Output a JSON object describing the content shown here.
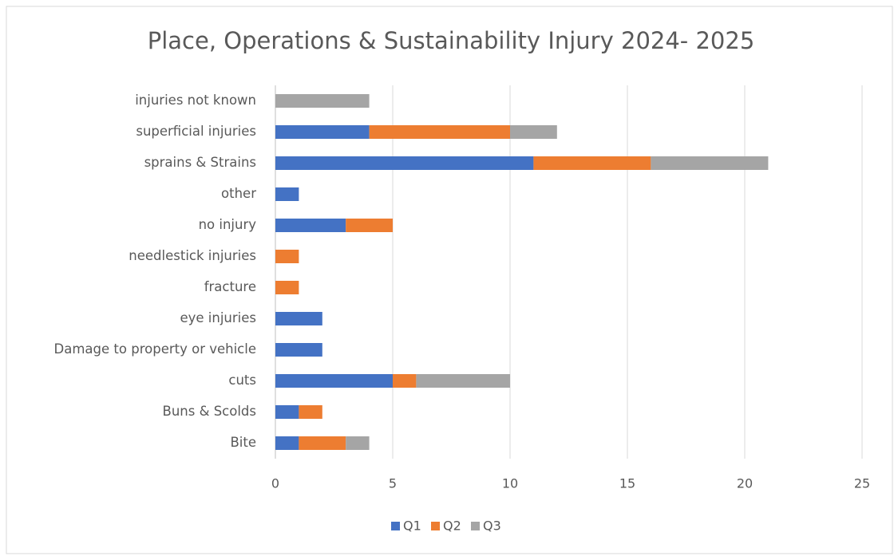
{
  "chart_data": {
    "type": "bar",
    "orientation": "horizontal",
    "stacked": true,
    "title": "Place, Operations & Sustainability Injury 2024- 2025",
    "categories": [
      "injuries not known",
      "superficial injuries",
      "sprains & Strains",
      "other",
      "no injury",
      "needlestick injuries",
      "fracture",
      "eye injuries",
      "Damage to property or vehicle",
      "cuts",
      "Buns & Scolds",
      "Bite"
    ],
    "series": [
      {
        "name": "Q1",
        "color": "#4472c4",
        "values": [
          0,
          4,
          11,
          1,
          3,
          0,
          0,
          2,
          2,
          5,
          1,
          1
        ]
      },
      {
        "name": "Q2",
        "color": "#ed7d31",
        "values": [
          0,
          6,
          5,
          0,
          2,
          1,
          1,
          0,
          0,
          1,
          1,
          2
        ]
      },
      {
        "name": "Q3",
        "color": "#a5a5a5",
        "values": [
          4,
          2,
          5,
          0,
          0,
          0,
          0,
          0,
          0,
          4,
          0,
          1
        ]
      }
    ],
    "xlim": [
      0,
      25
    ],
    "xticks": [
      0,
      5,
      10,
      15,
      20,
      25
    ],
    "grid": true,
    "legend": "bottom"
  }
}
